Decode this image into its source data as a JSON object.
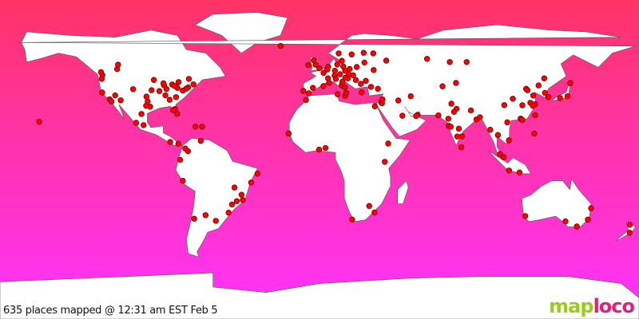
{
  "caption": "635 places mapped @ 12:31 am EST Feb 5",
  "logo": {
    "part1": "map",
    "part2": "loco"
  },
  "colors": {
    "ocean_top": "#ff3366",
    "ocean_bottom": "#ff33ff",
    "land": "#ffffff",
    "marker": "#ff0000",
    "marker_stroke": "#660000"
  },
  "markers": [
    [
      40.7,
      -74
    ],
    [
      42.4,
      -71
    ],
    [
      39.9,
      -75.2
    ],
    [
      38.9,
      -77
    ],
    [
      41.9,
      -87.6
    ],
    [
      42.3,
      -83
    ],
    [
      43.7,
      -79.4
    ],
    [
      45.5,
      -73.6
    ],
    [
      33.7,
      -84.4
    ],
    [
      29.8,
      -95.4
    ],
    [
      32.8,
      -96.8
    ],
    [
      30.3,
      -97.7
    ],
    [
      34,
      -118.2
    ],
    [
      37.8,
      -122.4
    ],
    [
      47.6,
      -122.3
    ],
    [
      45.5,
      -122.7
    ],
    [
      49.3,
      -123.1
    ],
    [
      39.7,
      -105
    ],
    [
      33.4,
      -112
    ],
    [
      36.2,
      -115.1
    ],
    [
      44.9,
      -93.3
    ],
    [
      39.1,
      -94.6
    ],
    [
      38.6,
      -90.2
    ],
    [
      35.2,
      -80.8
    ],
    [
      36.2,
      -86.8
    ],
    [
      25.8,
      -80.2
    ],
    [
      28.5,
      -81.4
    ],
    [
      27.9,
      -82.5
    ],
    [
      40.4,
      -80
    ],
    [
      41.5,
      -81.7
    ],
    [
      39.8,
      -86.2
    ],
    [
      43,
      -87.9
    ],
    [
      35.5,
      -97.5
    ],
    [
      32.7,
      -117.2
    ],
    [
      51,
      -114
    ],
    [
      53.5,
      -113.5
    ],
    [
      21.3,
      -157.9
    ],
    [
      19.4,
      -99.1
    ],
    [
      20.7,
      -103.3
    ],
    [
      25.7,
      -100.3
    ],
    [
      18.5,
      -69.9
    ],
    [
      18.5,
      -66.1
    ],
    [
      9.9,
      -84.1
    ],
    [
      8.9,
      -79.5
    ],
    [
      4.7,
      -74.1
    ],
    [
      6.2,
      -75.6
    ],
    [
      10.5,
      -66.9
    ],
    [
      -0.2,
      -78.5
    ],
    [
      -12,
      -77
    ],
    [
      -33.4,
      -70.6
    ],
    [
      -34.6,
      -58.4
    ],
    [
      -31.4,
      -64.2
    ],
    [
      -23.5,
      -46.6
    ],
    [
      -22.9,
      -43.2
    ],
    [
      -19.9,
      -43.9
    ],
    [
      -15.8,
      -47.9
    ],
    [
      -25.4,
      -49.3
    ],
    [
      -30,
      -51.2
    ],
    [
      -8,
      -34.9
    ],
    [
      -12.97,
      -38.5
    ],
    [
      51.5,
      -0.1
    ],
    [
      53.5,
      -2.2
    ],
    [
      55.9,
      -3.2
    ],
    [
      53.3,
      -6.3
    ],
    [
      48.9,
      2.3
    ],
    [
      45.8,
      4.8
    ],
    [
      43.3,
      5.4
    ],
    [
      52.4,
      4.9
    ],
    [
      50.8,
      4.4
    ],
    [
      52.5,
      13.4
    ],
    [
      48.1,
      11.6
    ],
    [
      50.1,
      8.7
    ],
    [
      53.6,
      10
    ],
    [
      47.4,
      8.5
    ],
    [
      48.2,
      16.4
    ],
    [
      50.1,
      14.4
    ],
    [
      52.2,
      21
    ],
    [
      47.5,
      19
    ],
    [
      45.5,
      9.2
    ],
    [
      41.9,
      12.5
    ],
    [
      40.8,
      14.3
    ],
    [
      40.4,
      -3.7
    ],
    [
      41.4,
      2.2
    ],
    [
      38.7,
      -9.1
    ],
    [
      37.4,
      -6
    ],
    [
      59.3,
      18.1
    ],
    [
      59.9,
      10.8
    ],
    [
      55.7,
      12.6
    ],
    [
      60.2,
      24.9
    ],
    [
      55.8,
      37.6
    ],
    [
      59.9,
      30.3
    ],
    [
      50.5,
      30.5
    ],
    [
      44.4,
      26.1
    ],
    [
      42.7,
      23.3
    ],
    [
      37.9,
      23.7
    ],
    [
      41,
      29
    ],
    [
      39.9,
      32.9
    ],
    [
      32.1,
      34.8
    ],
    [
      31.8,
      35.2
    ],
    [
      33.9,
      35.5
    ],
    [
      30,
      31.2
    ],
    [
      25.2,
      55.3
    ],
    [
      24.5,
      54.4
    ],
    [
      24.7,
      46.7
    ],
    [
      35.7,
      51.4
    ],
    [
      33.3,
      44.4
    ],
    [
      28.6,
      77.2
    ],
    [
      19,
      72.8
    ],
    [
      12.97,
      77.6
    ],
    [
      13.1,
      80.3
    ],
    [
      17.4,
      78.5
    ],
    [
      22.6,
      88.4
    ],
    [
      18.5,
      73.9
    ],
    [
      23,
      72.6
    ],
    [
      26.9,
      75.8
    ],
    [
      6.9,
      79.9
    ],
    [
      27.7,
      85.3
    ],
    [
      23.8,
      90.4
    ],
    [
      31.5,
      74.3
    ],
    [
      24.9,
      67
    ],
    [
      39.9,
      116.4
    ],
    [
      31.2,
      121.5
    ],
    [
      23.1,
      113.3
    ],
    [
      22.3,
      114.2
    ],
    [
      22.5,
      114.1
    ],
    [
      30.6,
      114.3
    ],
    [
      30.7,
      104.1
    ],
    [
      34.3,
      108.9
    ],
    [
      36.1,
      120.4
    ],
    [
      32,
      118.8
    ],
    [
      30.3,
      120.2
    ],
    [
      39.1,
      117.2
    ],
    [
      41.8,
      123.4
    ],
    [
      45.8,
      126.6
    ],
    [
      25,
      121.5
    ],
    [
      37.6,
      127
    ],
    [
      35.2,
      129
    ],
    [
      35.7,
      139.7
    ],
    [
      34.7,
      135.5
    ],
    [
      43.1,
      141.3
    ],
    [
      14.6,
      121
    ],
    [
      13.8,
      100.5
    ],
    [
      21,
      105.8
    ],
    [
      10.8,
      106.7
    ],
    [
      3.1,
      101.7
    ],
    [
      1.3,
      103.8
    ],
    [
      -6.2,
      106.8
    ],
    [
      -7.3,
      112.7
    ],
    [
      16.8,
      96.2
    ],
    [
      43.2,
      76.9
    ],
    [
      41.3,
      69.3
    ],
    [
      55,
      82.9
    ],
    [
      56.8,
      60.6
    ],
    [
      55,
      73.4
    ],
    [
      -33.9,
      151.2
    ],
    [
      -37.8,
      145
    ],
    [
      -27.5,
      153
    ],
    [
      -31.9,
      115.9
    ],
    [
      -34.9,
      138.6
    ],
    [
      -36.8,
      174.8
    ],
    [
      -41.3,
      174.8
    ],
    [
      -26.2,
      28
    ],
    [
      -33.9,
      18.4
    ],
    [
      -29.9,
      31
    ],
    [
      6.5,
      3.4
    ],
    [
      5.6,
      -0.2
    ],
    [
      -1.3,
      36.8
    ],
    [
      9,
      38.7
    ],
    [
      33.6,
      -7.6
    ],
    [
      36.8,
      10.2
    ],
    [
      14.7,
      -17.4
    ],
    [
      64.1,
      -21.9
    ],
    [
      35.9,
      14.5
    ],
    [
      37.5,
      15.1
    ],
    [
      44.8,
      20.5
    ],
    [
      45.8,
      16
    ],
    [
      46.1,
      14.5
    ],
    [
      43.9,
      12.9
    ],
    [
      51.1,
      17
    ],
    [
      54.7,
      25.3
    ]
  ]
}
